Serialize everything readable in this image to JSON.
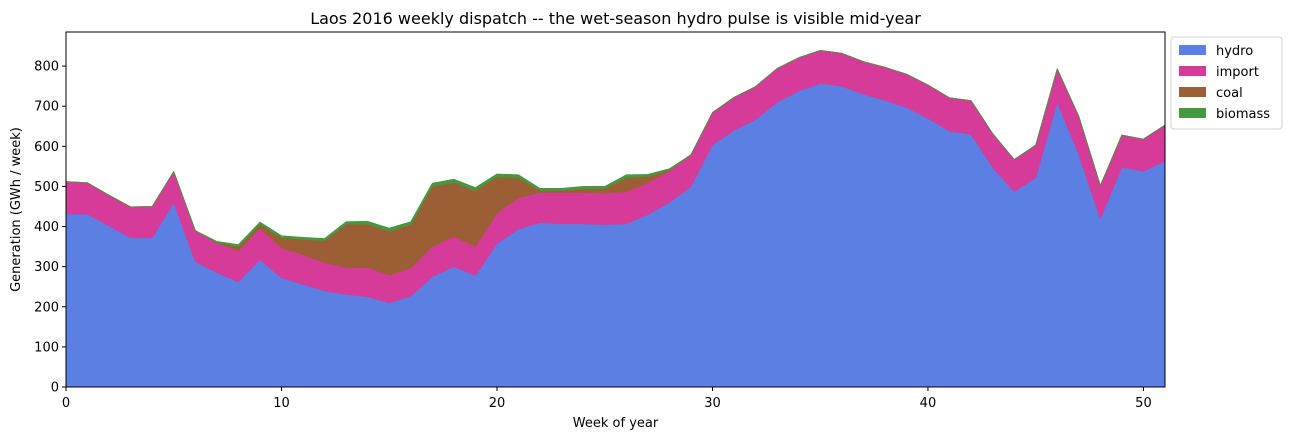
{
  "chart_data": {
    "type": "area",
    "stacked": true,
    "title": "Laos 2016 weekly dispatch -- the wet-season hydro pulse is visible mid-year",
    "xlabel": "Week of year",
    "ylabel": "Generation (GWh / week)",
    "xlim": [
      0,
      51
    ],
    "ylim": [
      0,
      885
    ],
    "xticks": [
      0,
      10,
      20,
      30,
      40,
      50
    ],
    "yticks": [
      0,
      100,
      200,
      300,
      400,
      500,
      600,
      700,
      800
    ],
    "grid": false,
    "legend_position": "outside-top-right",
    "x": [
      0,
      1,
      2,
      3,
      4,
      5,
      6,
      7,
      8,
      9,
      10,
      11,
      12,
      13,
      14,
      15,
      16,
      17,
      18,
      19,
      20,
      21,
      22,
      23,
      24,
      25,
      26,
      27,
      28,
      29,
      30,
      31,
      32,
      33,
      34,
      35,
      36,
      37,
      38,
      39,
      40,
      41,
      42,
      43,
      44,
      45,
      46,
      47,
      48,
      49,
      50,
      51
    ],
    "series": [
      {
        "name": "hydro",
        "color": "#5b7fe3",
        "values": [
          432,
          431,
          402,
          372,
          372,
          460,
          313,
          285,
          262,
          318,
          272,
          256,
          240,
          231,
          225,
          210,
          227,
          275,
          300,
          278,
          358,
          394,
          410,
          407,
          407,
          405,
          407,
          430,
          460,
          500,
          604,
          640,
          667,
          710,
          738,
          757,
          750,
          730,
          715,
          697,
          670,
          638,
          630,
          548,
          487,
          522,
          710,
          580,
          420,
          548,
          538,
          563
        ]
      },
      {
        "name": "import",
        "color": "#d63b9a",
        "values": [
          80,
          78,
          76,
          77,
          78,
          77,
          77,
          75,
          78,
          78,
          75,
          74,
          70,
          67,
          73,
          69,
          70,
          75,
          75,
          73,
          76,
          78,
          75,
          78,
          78,
          78,
          80,
          80,
          79,
          79,
          80,
          82,
          82,
          84,
          83,
          82,
          82,
          81,
          82,
          83,
          83,
          83,
          84,
          84,
          80,
          81,
          83,
          95,
          82,
          80,
          80,
          90
        ]
      },
      {
        "name": "coal",
        "color": "#9c5f35",
        "values": [
          0,
          0,
          0,
          0,
          0,
          0,
          0,
          0,
          10,
          10,
          25,
          38,
          55,
          108,
          108,
          110,
          108,
          150,
          135,
          139,
          90,
          50,
          5,
          5,
          10,
          12,
          35,
          15,
          2,
          0,
          0,
          0,
          0,
          0,
          0,
          0,
          0,
          0,
          0,
          0,
          0,
          0,
          0,
          0,
          0,
          0,
          0,
          0,
          0,
          0,
          0,
          0
        ]
      },
      {
        "name": "biomass",
        "color": "#46993f",
        "values": [
          0,
          0,
          0,
          0,
          0,
          0,
          0,
          3,
          5,
          5,
          5,
          5,
          5,
          6,
          7,
          7,
          7,
          8,
          8,
          7,
          7,
          7,
          5,
          5,
          5,
          5,
          7,
          5,
          3,
          0,
          0,
          0,
          0,
          0,
          0,
          0,
          0,
          0,
          0,
          0,
          0,
          0,
          0,
          0,
          0,
          0,
          0,
          0,
          0,
          0,
          0,
          0
        ]
      }
    ]
  }
}
